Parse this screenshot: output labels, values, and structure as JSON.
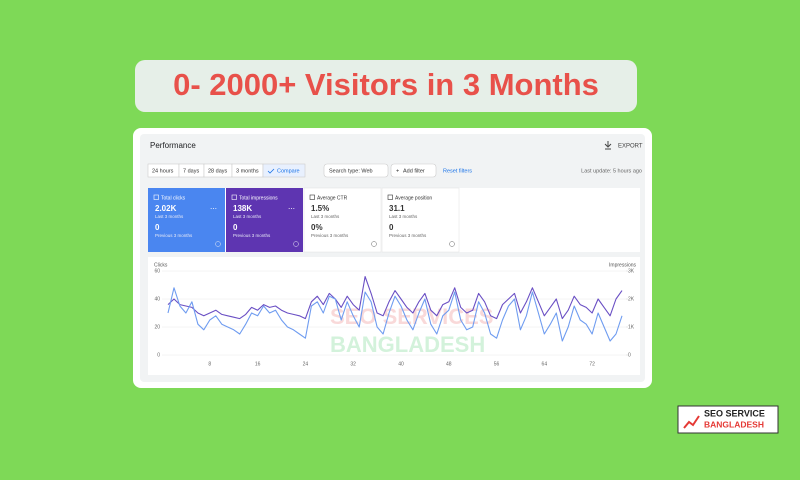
{
  "header": {
    "title": "0- 2000+ Visitors in 3 Months"
  },
  "panel": {
    "title": "Performance",
    "export": "EXPORT",
    "ranges": [
      "24 hours",
      "7 days",
      "28 days",
      "3 months",
      "Compare"
    ],
    "search_type": "Search type: Web",
    "add_filter": "Add filter",
    "reset": "Reset filters",
    "last_update": "Last update: 5 hours ago"
  },
  "metrics": [
    {
      "label": "Total clicks",
      "value": "2.02K",
      "period": "Last 3 months",
      "prev_value": "0",
      "prev_period": "Previous 3 months"
    },
    {
      "label": "Total impressions",
      "value": "138K",
      "period": "Last 3 months",
      "prev_value": "0",
      "prev_period": "Previous 3 months"
    },
    {
      "label": "Average CTR",
      "value": "1.5%",
      "period": "Last 3 months",
      "prev_value": "0%",
      "prev_period": "Previous 3 months"
    },
    {
      "label": "Average position",
      "value": "31.1",
      "period": "Last 3 months",
      "prev_value": "0",
      "prev_period": "Previous 3 months"
    }
  ],
  "watermark": [
    "SEO SERVICES",
    "BANGLADESH"
  ],
  "logo": [
    "SEO SERVICE",
    "BANGLADESH"
  ],
  "chart_data": {
    "type": "line",
    "x": [
      1,
      2,
      3,
      4,
      5,
      6,
      7,
      8,
      9,
      10,
      11,
      12,
      13,
      14,
      15,
      16,
      17,
      18,
      19,
      20,
      21,
      22,
      23,
      24,
      25,
      26,
      27,
      28,
      29,
      30,
      31,
      32,
      33,
      34,
      35,
      36,
      37,
      38,
      39,
      40,
      41,
      42,
      43,
      44,
      45,
      46,
      47,
      48,
      49,
      50,
      51,
      52,
      53,
      54,
      55,
      56,
      57,
      58,
      59,
      60,
      61,
      62,
      63,
      64,
      65,
      66,
      67,
      68,
      69,
      70,
      71,
      72,
      73,
      74,
      75,
      76,
      77
    ],
    "xlim": [
      1,
      77
    ],
    "xticks": [
      8,
      16,
      24,
      32,
      40,
      48,
      56,
      64,
      72
    ],
    "ylim": [
      0,
      60
    ],
    "yticks": [
      0,
      20,
      40,
      60
    ],
    "y2lim": [
      0,
      3000
    ],
    "y2ticks": [
      0,
      {
        "value": 1000,
        "label": "1K"
      },
      {
        "value": 2000,
        "label": "2K"
      },
      {
        "value": 3000,
        "label": "3K"
      }
    ],
    "grid": true,
    "series": [
      {
        "name": "Clicks",
        "color": "#6f9cf0",
        "values": [
          30,
          48,
          35,
          30,
          38,
          22,
          18,
          25,
          28,
          22,
          20,
          18,
          15,
          22,
          30,
          28,
          35,
          30,
          32,
          25,
          20,
          18,
          15,
          12,
          35,
          38,
          30,
          42,
          40,
          25,
          38,
          28,
          20,
          45,
          38,
          20,
          15,
          30,
          42,
          35,
          25,
          18,
          30,
          40,
          22,
          15,
          28,
          32,
          45,
          25,
          18,
          20,
          38,
          30,
          15,
          12,
          25,
          35,
          40,
          18,
          28,
          45,
          30,
          15,
          22,
          30,
          10,
          20,
          35,
          25,
          22,
          15,
          30,
          20,
          10,
          15,
          28
        ]
      },
      {
        "name": "Impressions",
        "color": "#6a4fc4",
        "axis": "y2",
        "values": [
          1800,
          2000,
          1800,
          1750,
          1700,
          1500,
          1400,
          1500,
          1600,
          1450,
          1400,
          1350,
          1300,
          1450,
          1700,
          1600,
          1800,
          1700,
          1750,
          1600,
          1500,
          1450,
          1400,
          1300,
          1900,
          2100,
          1800,
          2200,
          2000,
          1700,
          2100,
          1800,
          1600,
          2800,
          2200,
          1500,
          1400,
          1900,
          2300,
          2000,
          1700,
          1500,
          1900,
          2200,
          1600,
          1400,
          1800,
          1900,
          2400,
          1700,
          1500,
          1600,
          2200,
          1900,
          1400,
          1300,
          1800,
          2000,
          2200,
          1500,
          1900,
          2400,
          1900,
          1400,
          1700,
          2000,
          1300,
          1600,
          2100,
          1800,
          1700,
          1500,
          2000,
          1700,
          1400,
          2000,
          2300
        ]
      }
    ]
  }
}
